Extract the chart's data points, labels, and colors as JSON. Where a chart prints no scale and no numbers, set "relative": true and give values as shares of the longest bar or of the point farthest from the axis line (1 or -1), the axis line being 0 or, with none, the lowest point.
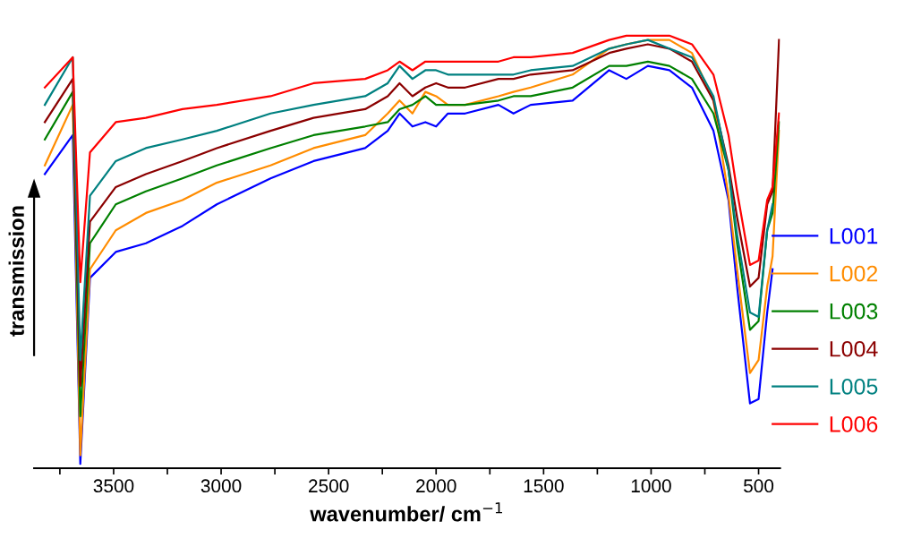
{
  "chart_data": {
    "type": "line",
    "relative": true,
    "xlabel": "wavenumber/ cm$^{−1}$",
    "ylabel": "transmission",
    "x": [
      3820,
      3690,
      3655,
      3610,
      3490,
      3350,
      3180,
      3020,
      2770,
      2570,
      2330,
      2225,
      2170,
      2110,
      2050,
      2000,
      1945,
      1865,
      1710,
      1640,
      1560,
      1365,
      1195,
      1115,
      1015,
      915,
      810,
      710,
      640,
      600,
      540,
      500,
      460,
      435,
      405
    ],
    "xlim": [
      3870,
      400
    ],
    "xticks": [
      {
        "value": 3750,
        "label": null
      },
      3500,
      {
        "value": 3250,
        "label": null
      },
      3000,
      {
        "value": 2750,
        "label": null
      },
      2500,
      {
        "value": 2250,
        "label": null
      },
      2000,
      {
        "value": 1750,
        "label": null
      },
      1500,
      {
        "value": 1250,
        "label": null
      },
      1000,
      {
        "value": 750,
        "label": null
      },
      500
    ],
    "tick_labels": "x",
    "grid": false,
    "legend": "right",
    "marker": "none",
    "line_style": "solid",
    "series": [
      {
        "name": "L001",
        "color": "#0000ff",
        "values": [
          0.68,
          0.77,
          0.01,
          0.44,
          0.5,
          0.52,
          0.56,
          0.61,
          0.67,
          0.71,
          0.74,
          0.78,
          0.82,
          0.79,
          0.8,
          0.79,
          0.82,
          0.82,
          0.84,
          0.82,
          0.84,
          0.85,
          0.92,
          0.9,
          0.93,
          0.92,
          0.88,
          0.78,
          0.62,
          0.42,
          0.15,
          0.16,
          0.36,
          0.46,
          null
        ]
      },
      {
        "name": "L002",
        "color": "#ff8c00",
        "values": [
          0.7,
          0.84,
          0.03,
          0.46,
          0.55,
          0.59,
          0.62,
          0.66,
          0.7,
          0.74,
          0.77,
          0.82,
          0.85,
          0.82,
          0.87,
          0.86,
          0.84,
          0.84,
          0.86,
          0.87,
          0.88,
          0.91,
          0.97,
          0.98,
          0.99,
          0.99,
          0.96,
          0.85,
          0.63,
          0.46,
          0.22,
          0.25,
          0.42,
          0.49,
          0.78
        ]
      },
      {
        "name": "L003",
        "color": "#008000",
        "values": [
          0.76,
          0.87,
          0.12,
          0.52,
          0.61,
          0.64,
          0.67,
          0.7,
          0.74,
          0.77,
          0.79,
          0.8,
          0.83,
          0.84,
          0.86,
          0.84,
          0.84,
          0.84,
          0.85,
          0.86,
          0.86,
          0.88,
          0.93,
          0.93,
          0.94,
          0.93,
          0.9,
          0.82,
          0.69,
          0.52,
          0.32,
          0.34,
          0.55,
          0.59,
          0.8
        ]
      },
      {
        "name": "L004",
        "color": "#8b0000",
        "values": [
          0.8,
          0.9,
          0.19,
          0.57,
          0.65,
          0.68,
          0.71,
          0.74,
          0.78,
          0.81,
          0.83,
          0.86,
          0.89,
          0.86,
          0.88,
          0.89,
          0.88,
          0.88,
          0.9,
          0.9,
          0.91,
          0.92,
          0.96,
          0.97,
          0.98,
          0.97,
          0.94,
          0.85,
          0.7,
          0.58,
          0.42,
          0.44,
          0.61,
          0.64,
          0.99
        ]
      },
      {
        "name": "L005",
        "color": "#008080",
        "values": [
          0.84,
          0.95,
          0.25,
          0.63,
          0.71,
          0.74,
          0.76,
          0.78,
          0.82,
          0.84,
          0.86,
          0.89,
          0.93,
          0.9,
          0.92,
          0.92,
          0.91,
          0.91,
          0.91,
          0.91,
          0.92,
          0.93,
          0.97,
          0.98,
          0.99,
          0.97,
          0.95,
          0.86,
          0.69,
          0.54,
          0.36,
          0.35,
          0.55,
          0.61,
          null
        ]
      },
      {
        "name": "L006",
        "color": "#ff0000",
        "values": [
          0.88,
          0.95,
          0.43,
          0.73,
          0.8,
          0.81,
          0.83,
          0.84,
          0.86,
          0.89,
          0.9,
          0.92,
          0.94,
          0.92,
          0.94,
          0.94,
          0.94,
          0.94,
          0.94,
          0.95,
          0.95,
          0.96,
          0.99,
          1.0,
          1.0,
          1.0,
          0.98,
          0.91,
          0.77,
          0.64,
          0.47,
          0.48,
          0.62,
          0.65,
          0.82
        ]
      }
    ]
  }
}
